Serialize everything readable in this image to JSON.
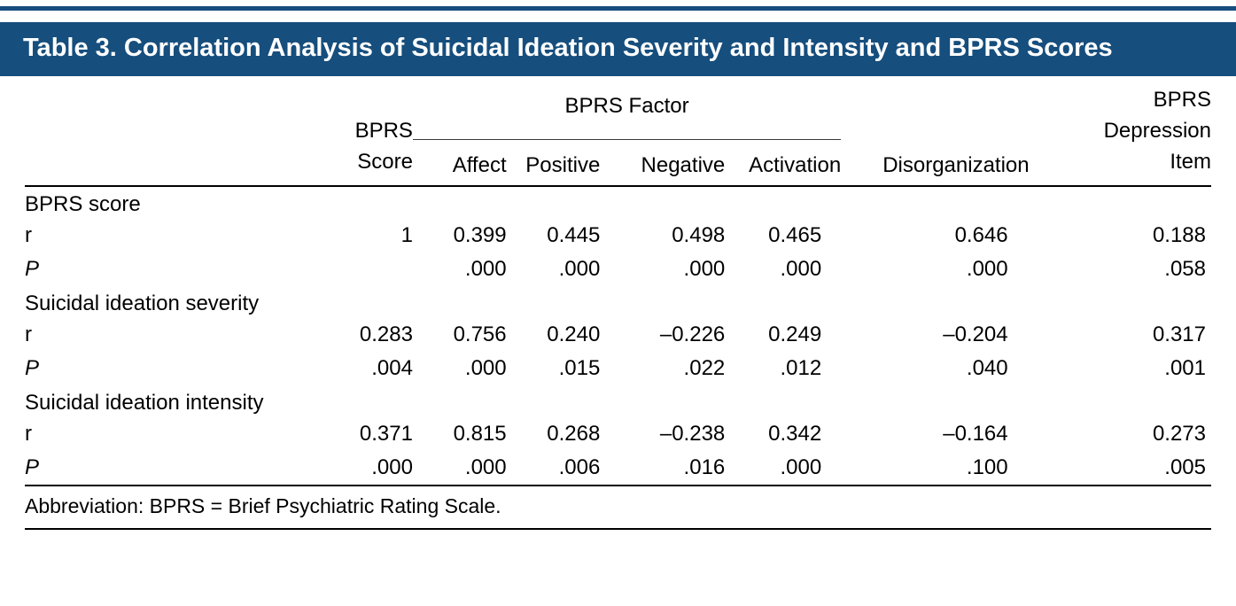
{
  "colors": {
    "header_bg": "#164e7d",
    "rule_color": "#000000",
    "title_text": "#ffffff"
  },
  "title": "Table 3. Correlation Analysis of Suicidal Ideation Severity and Intensity and BPRS Scores",
  "table": {
    "header": {
      "bprs_score": "BPRS Score",
      "factor_group": "BPRS Factor",
      "factor_cols": [
        "Affect",
        "Positive",
        "Negative",
        "Activation"
      ],
      "disorganization": "Disorganization",
      "depression_item": "BPRS Depression Item"
    },
    "sections": [
      {
        "label": "BPRS score",
        "rows": [
          {
            "label": "r",
            "values": [
              "1",
              "0.399",
              "0.445",
              "0.498",
              "0.465",
              "0.646",
              "0.188"
            ]
          },
          {
            "label": "P",
            "values": [
              "",
              ".000",
              ".000",
              ".000",
              ".000",
              ".000",
              ".058"
            ]
          }
        ]
      },
      {
        "label": "Suicidal ideation severity",
        "rows": [
          {
            "label": "r",
            "values": [
              "0.283",
              "0.756",
              "0.240",
              "–0.226",
              "0.249",
              "–0.204",
              "0.317"
            ]
          },
          {
            "label": "P",
            "values": [
              ".004",
              ".000",
              ".015",
              ".022",
              ".012",
              ".040",
              ".001"
            ]
          }
        ]
      },
      {
        "label": "Suicidal ideation intensity",
        "rows": [
          {
            "label": "r",
            "values": [
              "0.371",
              "0.815",
              "0.268",
              "–0.238",
              "0.342",
              "–0.164",
              "0.273"
            ]
          },
          {
            "label": "P",
            "values": [
              ".000",
              ".000",
              ".006",
              ".016",
              ".000",
              ".100",
              ".005"
            ]
          }
        ]
      }
    ],
    "footnote": "Abbreviation: BPRS = Brief Psychiatric Rating Scale."
  }
}
